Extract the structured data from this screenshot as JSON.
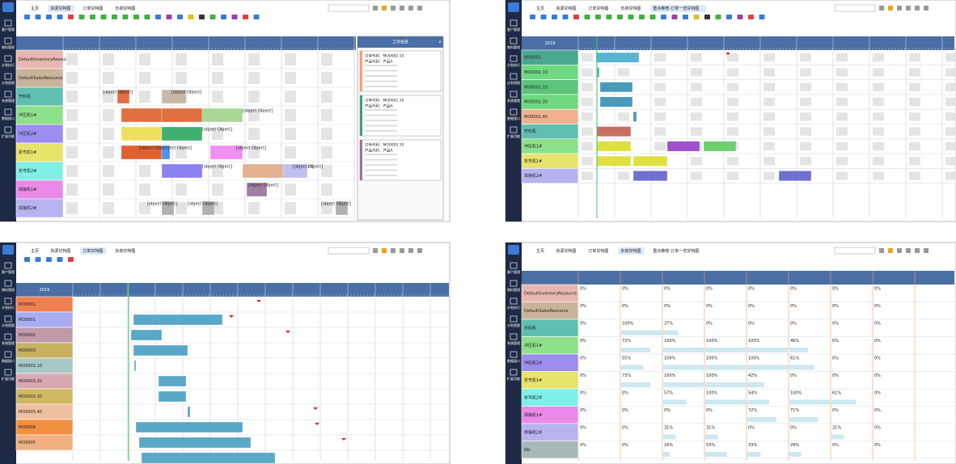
{
  "sidebar": [
    "客户管理",
    "物料管理",
    "计划执行",
    "计划视图",
    "系统管理",
    "数据接口",
    "扩展功能"
  ],
  "panels": [
    {
      "tabs": [
        "主页",
        "资源甘特图",
        "订单甘特图",
        "负荷甘特图"
      ],
      "active": 1,
      "rows": [
        {
          "label": "DefaultInventoryResource",
          "color": "#e8b7b0"
        },
        {
          "label": "DefaultSalesResource",
          "color": "#c9b49a"
        },
        {
          "label": "开料机",
          "color": "#5fbfb0"
        },
        {
          "label": "冲压机1#",
          "color": "#8de08a"
        },
        {
          "label": "冲压机2#",
          "color": "#9b8ef0"
        },
        {
          "label": "折弯机1#",
          "color": "#e8e36a"
        },
        {
          "label": "折弯机2#",
          "color": "#7ff0e8"
        },
        {
          "label": "焊接机1#",
          "color": "#e98ae8"
        },
        {
          "label": "焊接机2#",
          "color": "#b8b2f0"
        }
      ],
      "bars": [
        {
          "label": "MO0006.10",
          "color": "#e07040"
        },
        {
          "label": "MO0006.10",
          "color": "#c8b8a8"
        },
        {
          "label": "MO0001.20",
          "color": "#e07040"
        },
        {
          "label": "MO0006.20",
          "color": "#e07040"
        },
        {
          "label": "MO0006.20",
          "color": "#a8d898"
        },
        {
          "label": "MO0001.20",
          "color": "#f0e060"
        },
        {
          "label": "MO0001.20",
          "color": "#40b070"
        },
        {
          "label": "MO0001.30",
          "color": "#e06030"
        },
        {
          "label": "MO0001.30",
          "color": "#5090f0"
        },
        {
          "label": "MO0005.30",
          "color": "#f090f0"
        },
        {
          "label": "MO0001.30",
          "color": "#8a80f0"
        },
        {
          "label": "MO0005.30",
          "color": "#e0b090"
        },
        {
          "label": "MO0006.30",
          "color": "#c0c0f0"
        },
        {
          "label": "MO0005.40",
          "color": "#a080a0"
        },
        {
          "label": "MO0002.40",
          "color": "#b0b0b0"
        },
        {
          "label": "MO0002.40",
          "color": "#b0b0b0"
        },
        {
          "label": "MO0006.40",
          "color": "#b0b0b0"
        }
      ],
      "info": {
        "title": "工作信息",
        "cards": [
          {
            "color": "#f0a070",
            "lines": [
              "订单代码：MO0002.10",
              "产品代码：产品A"
            ]
          },
          {
            "color": "#40a070",
            "lines": [
              "订单代码：MO0001.10",
              "产品代码：产品A"
            ]
          },
          {
            "color": "#a070a0",
            "lines": [
              "订单代码：MO0005.10",
              "产品代码：产品A"
            ]
          }
        ]
      }
    },
    {
      "tabs": [
        "主页",
        "资源甘特图",
        "订单甘特图",
        "负荷甘特图",
        "重点推荐-订单一览甘特图"
      ],
      "active": 4,
      "year": "2019",
      "rows": [
        {
          "label": "MO0002",
          "color": "#4aa890"
        },
        {
          "label": "MO0002.10",
          "color": "#6fd880"
        },
        {
          "label": "MO0002.20",
          "color": "#5bc47a"
        },
        {
          "label": "MO0002.30",
          "color": "#6fd880"
        },
        {
          "label": "MO0002.40",
          "color": "#f0b090"
        },
        {
          "label": "开料机",
          "color": "#5fbfb0"
        },
        {
          "label": "冲压机1#",
          "color": "#8de08a"
        },
        {
          "label": "折弯机1#",
          "color": "#e8e36a"
        },
        {
          "label": "焊接机2#",
          "color": "#b8b2f0"
        }
      ],
      "bars": [
        {
          "label": "MO0002",
          "color": "#5ab4d0"
        },
        {
          "label": "M",
          "color": "#5ab4d0"
        },
        {
          "label": "MO0002.20",
          "color": "#4a9ab8"
        },
        {
          "label": "MO0002.30",
          "color": "#4a9ab8"
        },
        {
          "label": "MO0002.40",
          "color": "#4a9ab8"
        },
        {
          "label": "MO0002.10",
          "color": "#c87060"
        },
        {
          "label": "MO0002.20",
          "color": "#e0e040"
        },
        {
          "label": "MO0002.20",
          "color": "#a050d0"
        },
        {
          "label": "MO0002.20",
          "color": "#70d070"
        },
        {
          "label": "MO0002.30",
          "color": "#e0e040"
        },
        {
          "label": "MO0002.30",
          "color": "#e0e040"
        },
        {
          "label": "MO0002.40",
          "color": "#7070d0"
        },
        {
          "label": "MO0002.40",
          "color": "#7070d0"
        }
      ]
    },
    {
      "tabs": [
        "主页",
        "资源甘特图",
        "订单甘特图",
        "负荷甘特图"
      ],
      "active": 2,
      "year": "2019",
      "rows": [
        {
          "label": "MO0001",
          "color": "#f08050"
        },
        {
          "label": "MO0001",
          "color": "#a8acf0"
        },
        {
          "label": "MO0002",
          "color": "#c09aa8"
        },
        {
          "label": "MO0003",
          "color": "#c8b060"
        },
        {
          "label": "MO0003.10",
          "color": "#a8c8c8"
        },
        {
          "label": "MO0003.20",
          "color": "#d8a8b0"
        },
        {
          "label": "MO0003.30",
          "color": "#d0b860"
        },
        {
          "label": "MO0003.40",
          "color": "#f0c0a0"
        },
        {
          "label": "MO0004",
          "color": "#f09040"
        },
        {
          "label": "MO0005",
          "color": "#f0b080"
        },
        {
          "label": "MO0006",
          "color": "#c0a8e0"
        }
      ],
      "bars": [
        {
          "label": "MO0001",
          "color": "#5aa8c8"
        },
        {
          "label": "MO0002",
          "color": "#5aa8c8"
        },
        {
          "label": "MO0003",
          "color": "#5aa8c8"
        },
        {
          "label": "MO0003.10",
          "color": "#5aa8c8"
        },
        {
          "label": "MO0003.20",
          "color": "#5aa8c8"
        },
        {
          "label": "MO0003.30",
          "color": "#5aa8c8"
        },
        {
          "label": "MO0003.40",
          "color": "#5aa8c8"
        },
        {
          "label": "MO0004",
          "color": "#5aa8c8"
        },
        {
          "label": "MO0005",
          "color": "#5aa8c8"
        },
        {
          "label": "MO0006",
          "color": "#5aa8c8"
        }
      ]
    },
    {
      "tabs": [
        "主页",
        "资源甘特图",
        "订单甘特图",
        "负荷甘特图",
        "重点推荐-订单一览甘特图"
      ],
      "active": 3,
      "rows": [
        {
          "label": "DefaultInventoryResource",
          "color": "#e8b7b0",
          "values": [
            0,
            0,
            0,
            0,
            0,
            0,
            0,
            0
          ],
          "labels": [
            "0%",
            "0%",
            "0%",
            "0%",
            "0%",
            "0%",
            "0%",
            "0%"
          ]
        },
        {
          "label": "DefaultSalesResource",
          "color": "#c9b49a",
          "values": [
            0,
            0,
            0,
            0,
            0,
            0,
            0,
            0
          ],
          "labels": [
            "0%",
            "0%",
            "0%",
            "0%",
            "0%",
            "0%",
            "0%",
            "0%"
          ]
        },
        {
          "label": "开料机",
          "color": "#5fbfb0",
          "values": [
            0,
            100,
            37,
            0,
            0,
            0,
            0,
            0
          ],
          "labels": [
            "0%",
            "100%",
            "37%",
            "0%",
            "0%",
            "0%",
            "0%",
            "0%"
          ]
        },
        {
          "label": "冲压机1#",
          "color": "#8de08a",
          "values": [
            0,
            72,
            100,
            100,
            100,
            46,
            0,
            0
          ],
          "labels": [
            "0%",
            "72%",
            "100%",
            "100%",
            "100%",
            "46%",
            "0%",
            "0%"
          ]
        },
        {
          "label": "冲压机2#",
          "color": "#9b8ef0",
          "values": [
            0,
            55,
            100,
            100,
            100,
            61,
            0,
            0
          ],
          "labels": [
            "0%",
            "55%",
            "100%",
            "100%",
            "100%",
            "61%",
            "0%",
            "0%"
          ]
        },
        {
          "label": "折弯机1#",
          "color": "#e8e36a",
          "values": [
            0,
            73,
            100,
            100,
            42,
            0,
            0,
            0
          ],
          "labels": [
            "0%",
            "73%",
            "100%",
            "100%",
            "42%",
            "0%",
            "0%",
            "0%"
          ]
        },
        {
          "label": "折弯机2#",
          "color": "#7ff0e8",
          "values": [
            0,
            0,
            57,
            100,
            54,
            100,
            61,
            0
          ],
          "labels": [
            "0%",
            "0%",
            "57%",
            "100%",
            "54%",
            "100%",
            "61%",
            "0%"
          ]
        },
        {
          "label": "焊接机1#",
          "color": "#e98ae8",
          "values": [
            0,
            0,
            0,
            0,
            72,
            71,
            0,
            0
          ],
          "labels": [
            "0%",
            "0%",
            "0%",
            "0%",
            "72%",
            "71%",
            "0%",
            "0%"
          ]
        },
        {
          "label": "焊接机2#",
          "color": "#b8b2f0",
          "values": [
            0,
            0,
            31,
            31,
            0,
            0,
            31,
            0
          ],
          "labels": [
            "0%",
            "0%",
            "31%",
            "31%",
            "0%",
            "0%",
            "31%",
            "0%"
          ]
        },
        {
          "label": "NG",
          "color": "#a8b8b8",
          "values": [
            0,
            0,
            16,
            53,
            33,
            29,
            0,
            0
          ],
          "labels": [
            "0%",
            "0%",
            "16%",
            "53%",
            "33%",
            "29%",
            "0%",
            "0%"
          ]
        }
      ]
    }
  ]
}
